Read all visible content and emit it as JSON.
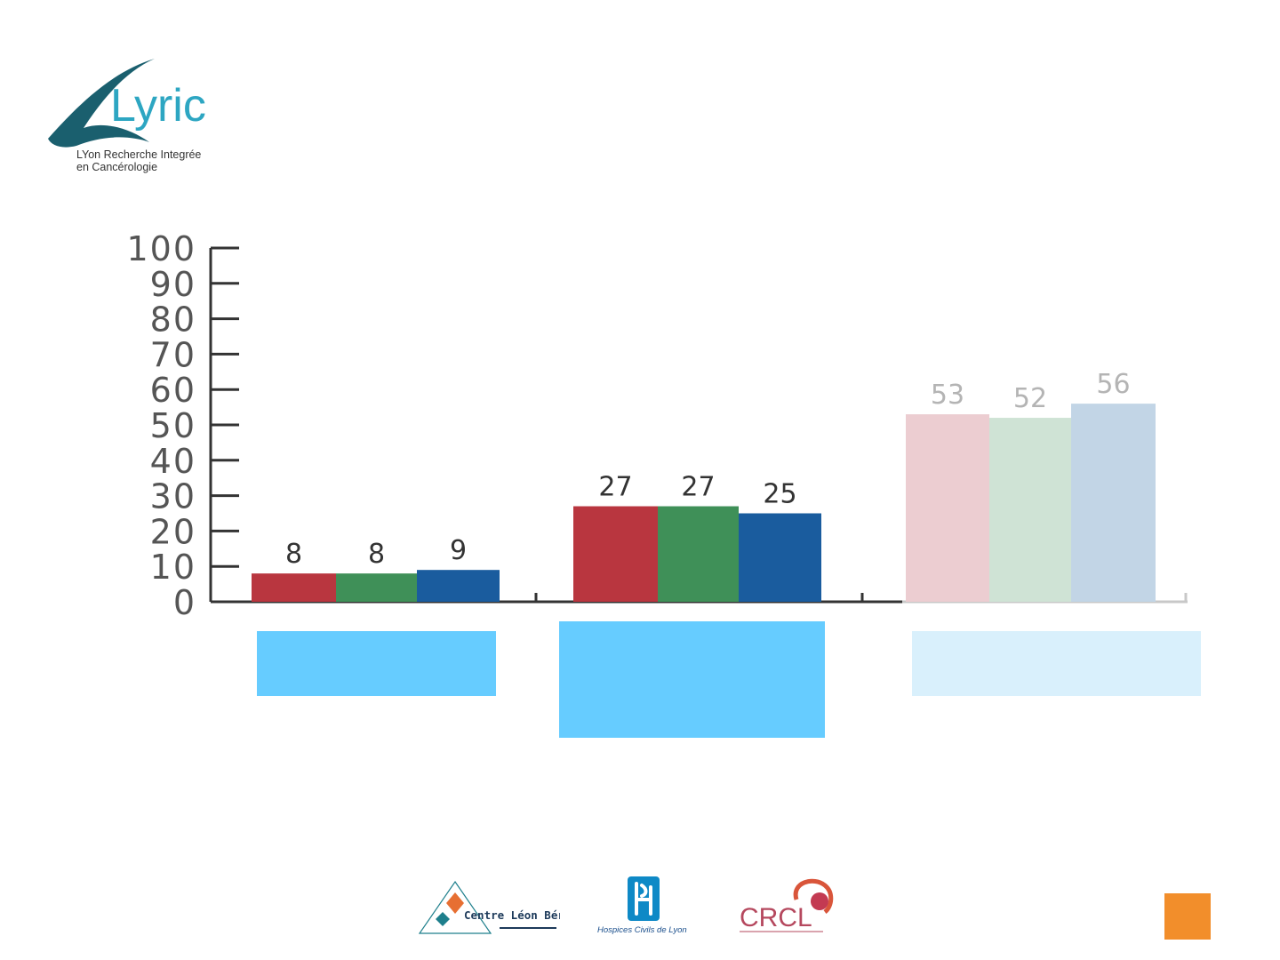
{
  "logo": {
    "name": "Lyric",
    "tagline_line1": "LYon Recherche Integrée",
    "tagline_line2": "en Cancérologie"
  },
  "chart_data": {
    "type": "bar",
    "yticks": [
      "0",
      "10",
      "20",
      "30",
      "40",
      "50",
      "60",
      "70",
      "80",
      "90",
      "100"
    ],
    "ylim": [
      0,
      100
    ],
    "categories": [
      "",
      "",
      ""
    ],
    "series": [
      {
        "values": [
          8,
          27,
          53
        ]
      },
      {
        "values": [
          8,
          27,
          52
        ]
      },
      {
        "values": [
          9,
          25,
          56
        ]
      }
    ],
    "data_labels": [
      [
        "8",
        "8",
        "9"
      ],
      [
        "27",
        "27",
        "25"
      ],
      [
        "53",
        "52",
        "56"
      ]
    ],
    "colors": {
      "full": [
        "#b9363f",
        "#3f9058",
        "#1a5c9e"
      ],
      "faded": [
        "#eccdd1",
        "#cfe3d5",
        "#c2d5e6"
      ],
      "label": "#333333",
      "label_faded": "#b4b4b4",
      "axis": "#333333"
    },
    "grid": false
  },
  "category_boxes": [
    {
      "color": "#66ccff"
    },
    {
      "color": "#66ccff"
    },
    {
      "color": "#d9f0fc"
    }
  ],
  "partners": {
    "clb_name": "Centre Léon Bérard",
    "hcl_name": "Hospices Civils de Lyon",
    "crcl_name": "CRCL"
  },
  "accent_color": "#f28e2b"
}
